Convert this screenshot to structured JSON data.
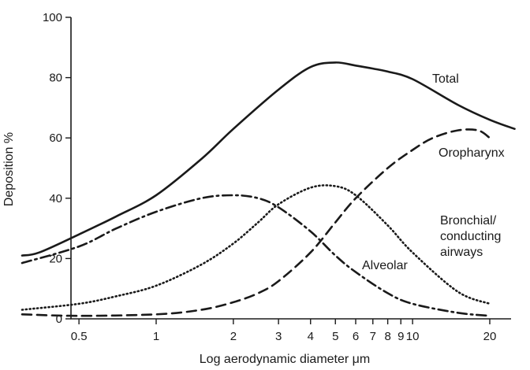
{
  "chart_data": {
    "type": "line",
    "title": "",
    "xlabel": "Log aerodynamic diameter μm",
    "ylabel": "Deposition %",
    "x_scale": "log",
    "xlim": [
      0.3,
      25
    ],
    "ylim": [
      0,
      100
    ],
    "grid": false,
    "x_ticks": [
      0.5,
      1,
      2,
      3,
      4,
      5,
      6,
      7,
      8,
      9,
      10,
      20
    ],
    "x_tick_labels": [
      "0.5",
      "1",
      "2",
      "3",
      "4",
      "5",
      "6",
      "7",
      "8",
      "9",
      "10",
      "20"
    ],
    "y_ticks": [
      0,
      20,
      40,
      60,
      80,
      100
    ],
    "y_tick_labels": [
      "0",
      "20",
      "40",
      "60",
      "80",
      "100"
    ],
    "series": [
      {
        "name": "Total",
        "style": "solid",
        "x": [
          0.3,
          0.35,
          0.5,
          0.7,
          1,
          1.5,
          2,
          3,
          4,
          5,
          6,
          7,
          8,
          10,
          15,
          20,
          25
        ],
        "y": [
          21,
          22,
          28,
          34,
          41,
          53,
          63,
          76,
          83.5,
          85,
          84,
          83,
          82,
          79.5,
          71,
          66,
          63
        ]
      },
      {
        "name": "Oropharynx",
        "style": "dashed",
        "x": [
          0.3,
          0.5,
          1,
          1.5,
          2,
          2.5,
          3,
          4,
          5,
          6,
          8,
          10,
          12,
          15,
          18,
          20
        ],
        "y": [
          1.5,
          1,
          1.5,
          3,
          5.5,
          8.5,
          12.5,
          22,
          32,
          40,
          50,
          56,
          60,
          62.5,
          62.5,
          60
        ]
      },
      {
        "name": "Alveolar",
        "style": "dash-dot",
        "x": [
          0.3,
          0.5,
          0.7,
          1,
          1.5,
          2,
          2.5,
          3,
          4,
          5,
          6,
          8,
          10,
          15,
          20
        ],
        "y": [
          18.5,
          24,
          30,
          35.5,
          40,
          41,
          40,
          37,
          29,
          21,
          15.5,
          8.5,
          5,
          2,
          1
        ]
      },
      {
        "name": "Bronchial/ conducting airways",
        "label_lines": [
          "Bronchial/",
          "conducting",
          "airways"
        ],
        "style": "dotted",
        "x": [
          0.3,
          0.5,
          0.7,
          1,
          1.5,
          2,
          2.5,
          3,
          4,
          5,
          6,
          8,
          10,
          15,
          20
        ],
        "y": [
          3,
          5,
          7.5,
          11,
          18,
          25,
          32,
          38,
          43.5,
          44,
          41,
          31,
          22,
          9,
          5
        ]
      }
    ]
  }
}
